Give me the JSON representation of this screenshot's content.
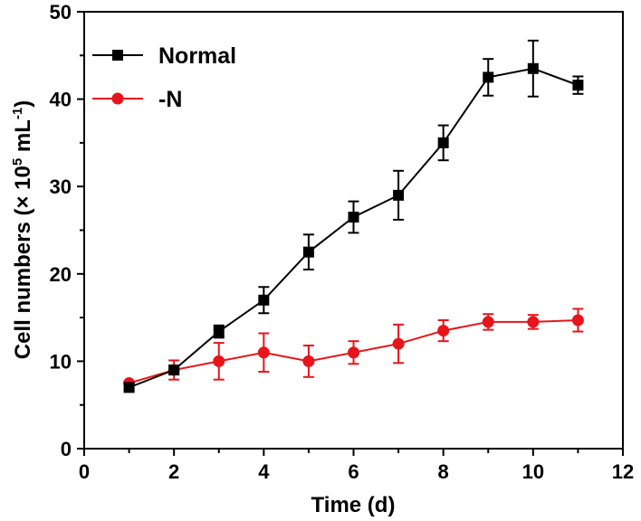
{
  "chart_data": {
    "type": "line",
    "title": "",
    "xlabel": "Time (d)",
    "ylabel": {
      "prefix": "Cell numbers (× 10",
      "exp": "5",
      "mid": " mL",
      "exp2": "-1",
      "suffix": ")"
    },
    "xlim": [
      0,
      12
    ],
    "ylim": [
      0,
      50
    ],
    "xticks": [
      0,
      2,
      4,
      6,
      8,
      10,
      12
    ],
    "yticks": [
      0,
      10,
      20,
      30,
      40,
      50
    ],
    "grid": false,
    "legend_position": "top-left",
    "x": [
      1,
      2,
      3,
      4,
      5,
      6,
      7,
      8,
      9,
      10,
      11
    ],
    "series": [
      {
        "name": "Normal",
        "color": "#000000",
        "marker": "square",
        "values": [
          7.0,
          9.0,
          13.4,
          17.0,
          22.5,
          26.5,
          29.0,
          35.0,
          42.5,
          43.5,
          41.6
        ],
        "errors": [
          0.3,
          0.5,
          0.7,
          1.5,
          2.0,
          1.8,
          2.8,
          2.0,
          2.1,
          3.2,
          1.0
        ]
      },
      {
        "name": "-N",
        "color": "#e8141b",
        "marker": "circle",
        "values": [
          7.5,
          9.0,
          10.0,
          11.0,
          10.0,
          11.0,
          12.0,
          13.5,
          14.5,
          14.5,
          14.7
        ],
        "errors": [
          0.2,
          1.1,
          2.1,
          2.2,
          1.8,
          1.3,
          2.2,
          1.2,
          0.9,
          0.8,
          1.3
        ]
      }
    ]
  }
}
